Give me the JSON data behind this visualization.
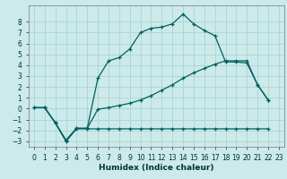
{
  "xlabel": "Humidex (Indice chaleur)",
  "background_color": "#cceaea",
  "grid_color": "#aad4d4",
  "line_color": "#006060",
  "xlim": [
    -0.5,
    23.5
  ],
  "ylim": [
    -3.5,
    9.5
  ],
  "xticks": [
    0,
    1,
    2,
    3,
    4,
    5,
    6,
    7,
    8,
    9,
    10,
    11,
    12,
    13,
    14,
    15,
    16,
    17,
    18,
    19,
    20,
    21,
    22,
    23
  ],
  "yticks": [
    -3,
    -2,
    -1,
    0,
    1,
    2,
    3,
    4,
    5,
    6,
    7,
    8
  ],
  "series": [
    {
      "x": [
        1,
        2,
        3,
        4,
        5,
        6,
        7,
        8,
        9,
        10,
        11,
        12,
        13,
        14,
        15,
        16,
        17,
        18,
        19,
        20,
        21,
        22
      ],
      "y": [
        0.1,
        -1.3,
        -2.9,
        -1.8,
        -1.8,
        2.8,
        4.4,
        4.7,
        5.5,
        7.0,
        7.4,
        7.5,
        7.8,
        8.7,
        7.8,
        7.2,
        6.7,
        4.3,
        4.3,
        4.2,
        2.2,
        0.8
      ]
    },
    {
      "x": [
        0,
        1,
        2,
        3,
        4,
        5,
        6,
        7,
        8,
        9,
        10,
        11,
        12,
        13,
        14,
        15,
        16,
        17,
        18,
        19,
        20,
        21,
        22
      ],
      "y": [
        0.1,
        0.1,
        -1.3,
        -2.9,
        -1.8,
        -1.8,
        -0.05,
        0.1,
        0.3,
        0.5,
        0.8,
        1.2,
        1.7,
        2.2,
        2.8,
        3.3,
        3.7,
        4.1,
        4.4,
        4.4,
        4.4,
        2.2,
        0.8
      ]
    },
    {
      "x": [
        0,
        1,
        2,
        3,
        4,
        5,
        6,
        7,
        8,
        9,
        10,
        11,
        12,
        13,
        14,
        15,
        16,
        17,
        18,
        19,
        20,
        21,
        22
      ],
      "y": [
        0.1,
        0.1,
        -1.3,
        -3.0,
        -1.85,
        -1.85,
        -1.85,
        -1.85,
        -1.85,
        -1.85,
        -1.85,
        -1.85,
        -1.85,
        -1.85,
        -1.85,
        -1.85,
        -1.85,
        -1.85,
        -1.85,
        -1.85,
        -1.85,
        -1.85,
        -1.85
      ]
    }
  ]
}
